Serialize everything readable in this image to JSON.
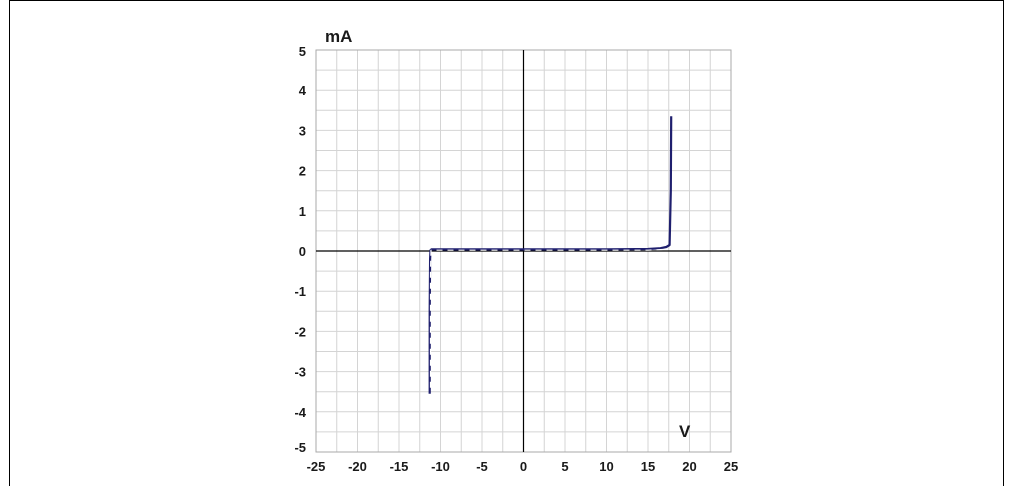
{
  "chart_data": {
    "type": "line",
    "title": "",
    "xlabel": "V",
    "ylabel": "mA",
    "xlim": [
      -25,
      25
    ],
    "ylim": [
      -5,
      5
    ],
    "x_ticks": [
      -25,
      -20,
      -15,
      -10,
      -5,
      0,
      5,
      10,
      15,
      20,
      25
    ],
    "y_ticks": [
      5,
      4,
      3,
      2,
      1,
      0,
      -1,
      -2,
      -3,
      -4,
      -5
    ],
    "x_tick_labels": [
      "-25",
      "-20",
      "-15",
      "-10",
      "-5",
      "0",
      "5",
      "10",
      "15",
      "20",
      "25"
    ],
    "y_tick_labels": [
      "5",
      "4",
      "3",
      "2",
      "1",
      "0",
      "-1",
      "-2",
      "-3",
      "-4",
      "-5"
    ],
    "grid_step_x": 2.5,
    "grid_step_y": 0.5,
    "grid": true,
    "series": [
      {
        "color": "#1f1f6e",
        "style": "solid",
        "x": [
          -11.3,
          -11.3,
          -11.25,
          -11.2,
          -11.1,
          -5,
          0,
          5,
          10,
          15,
          16.5,
          17.2,
          17.6,
          17.75,
          17.8
        ],
        "y": [
          -3.55,
          -1.5,
          -0.2,
          0.02,
          0.04,
          0.04,
          0.04,
          0.04,
          0.04,
          0.05,
          0.07,
          0.1,
          0.15,
          1.5,
          3.35
        ]
      },
      {
        "color": "#ffffff",
        "style": "dashed",
        "x": [
          -11.2,
          -11.2,
          -11.15,
          -10,
          -5,
          0,
          5,
          10,
          15,
          17.0
        ],
        "y": [
          -3.4,
          -0.5,
          0.02,
          0.02,
          0.02,
          0.02,
          0.02,
          0.02,
          0.02,
          0.04
        ]
      }
    ]
  }
}
